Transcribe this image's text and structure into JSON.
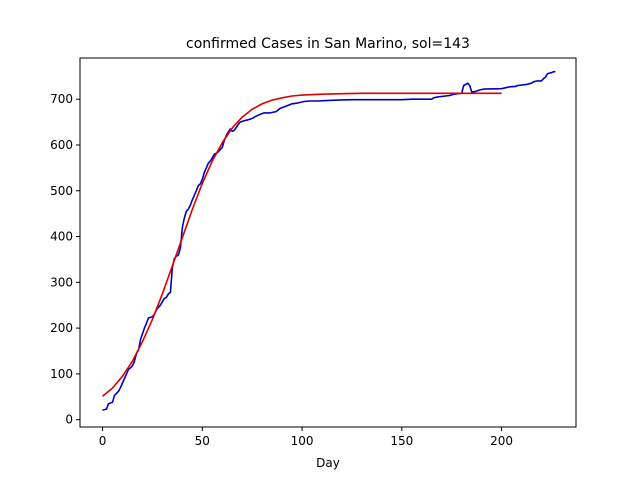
{
  "chart_data": {
    "type": "line",
    "title": "confirmed Cases in San Marino, sol=143",
    "xlabel": "Day",
    "ylabel": "",
    "xlim": [
      -11.3,
      237.3
    ],
    "ylim": [
      -16,
      790
    ],
    "xticks": [
      0,
      50,
      100,
      150,
      200
    ],
    "yticks": [
      0,
      100,
      200,
      300,
      400,
      500,
      600,
      700
    ],
    "grid": false,
    "legend": "none",
    "series": [
      {
        "color": "#0000cc",
        "style": "step-line",
        "points": [
          [
            0,
            21
          ],
          [
            2,
            23
          ],
          [
            3,
            35
          ],
          [
            5,
            38
          ],
          [
            6,
            53
          ],
          [
            8,
            62
          ],
          [
            9,
            70
          ],
          [
            10,
            80
          ],
          [
            11,
            90
          ],
          [
            12,
            100
          ],
          [
            13,
            110
          ],
          [
            14,
            113
          ],
          [
            15,
            118
          ],
          [
            16,
            128
          ],
          [
            17,
            145
          ],
          [
            18,
            152
          ],
          [
            19,
            175
          ],
          [
            20,
            187
          ],
          [
            21,
            200
          ],
          [
            22,
            210
          ],
          [
            23,
            222
          ],
          [
            25,
            225
          ],
          [
            26,
            230
          ],
          [
            27,
            240
          ],
          [
            29,
            250
          ],
          [
            30,
            258
          ],
          [
            31,
            265
          ],
          [
            32,
            267
          ],
          [
            33,
            275
          ],
          [
            34,
            278
          ],
          [
            35,
            333
          ],
          [
            36,
            352
          ],
          [
            37,
            357
          ],
          [
            38,
            360
          ],
          [
            39,
            375
          ],
          [
            40,
            420
          ],
          [
            41,
            440
          ],
          [
            42,
            455
          ],
          [
            43,
            460
          ],
          [
            44,
            468
          ],
          [
            45,
            480
          ],
          [
            46,
            490
          ],
          [
            47,
            500
          ],
          [
            48,
            511
          ],
          [
            49,
            515
          ],
          [
            50,
            525
          ],
          [
            51,
            540
          ],
          [
            52,
            550
          ],
          [
            53,
            560
          ],
          [
            54,
            565
          ],
          [
            55,
            572
          ],
          [
            56,
            580
          ],
          [
            57,
            582
          ],
          [
            58,
            585
          ],
          [
            60,
            595
          ],
          [
            61,
            610
          ],
          [
            62,
            620
          ],
          [
            63,
            628
          ],
          [
            64,
            635
          ],
          [
            65,
            630
          ],
          [
            66,
            632
          ],
          [
            67,
            638
          ],
          [
            68,
            645
          ],
          [
            69,
            650
          ],
          [
            71,
            653
          ],
          [
            73,
            655
          ],
          [
            75,
            658
          ],
          [
            77,
            663
          ],
          [
            79,
            667
          ],
          [
            81,
            670
          ],
          [
            84,
            670
          ],
          [
            87,
            673
          ],
          [
            89,
            680
          ],
          [
            92,
            685
          ],
          [
            95,
            690
          ],
          [
            98,
            692
          ],
          [
            101,
            695
          ],
          [
            104,
            696
          ],
          [
            108,
            696
          ],
          [
            112,
            697
          ],
          [
            118,
            698
          ],
          [
            125,
            699
          ],
          [
            130,
            699
          ],
          [
            140,
            699
          ],
          [
            150,
            699
          ],
          [
            155,
            700
          ],
          [
            165,
            700
          ],
          [
            166,
            703
          ],
          [
            168,
            705
          ],
          [
            174,
            708
          ],
          [
            176,
            711
          ],
          [
            178,
            712
          ],
          [
            180,
            713
          ],
          [
            181,
            730
          ],
          [
            183,
            735
          ],
          [
            184,
            730
          ],
          [
            185,
            716
          ],
          [
            187,
            717
          ],
          [
            189,
            720
          ],
          [
            191,
            722
          ],
          [
            200,
            723
          ],
          [
            204,
            727
          ],
          [
            207,
            728
          ],
          [
            208,
            730
          ],
          [
            212,
            732
          ],
          [
            215,
            735
          ],
          [
            216,
            738
          ],
          [
            218,
            740
          ],
          [
            220,
            740
          ],
          [
            221,
            745
          ],
          [
            222,
            748
          ],
          [
            223,
            756
          ],
          [
            225,
            758
          ],
          [
            226,
            760
          ],
          [
            227,
            760
          ]
        ]
      },
      {
        "color": "#dd0000",
        "style": "logistic-fit",
        "points": [
          [
            0,
            51
          ],
          [
            5,
            69
          ],
          [
            10,
            95
          ],
          [
            15,
            128
          ],
          [
            20,
            170
          ],
          [
            25,
            219
          ],
          [
            30,
            275
          ],
          [
            35,
            336
          ],
          [
            40,
            398
          ],
          [
            45,
            459
          ],
          [
            50,
            516
          ],
          [
            55,
            565
          ],
          [
            60,
            605
          ],
          [
            65,
            637
          ],
          [
            70,
            661
          ],
          [
            75,
            678
          ],
          [
            80,
            690
          ],
          [
            85,
            698
          ],
          [
            90,
            703
          ],
          [
            95,
            707
          ],
          [
            100,
            709
          ],
          [
            110,
            711
          ],
          [
            120,
            712
          ],
          [
            130,
            713
          ],
          [
            140,
            713
          ],
          [
            150,
            713
          ],
          [
            160,
            713
          ],
          [
            170,
            713
          ],
          [
            180,
            713
          ],
          [
            190,
            713
          ],
          [
            200,
            713
          ]
        ]
      }
    ]
  }
}
